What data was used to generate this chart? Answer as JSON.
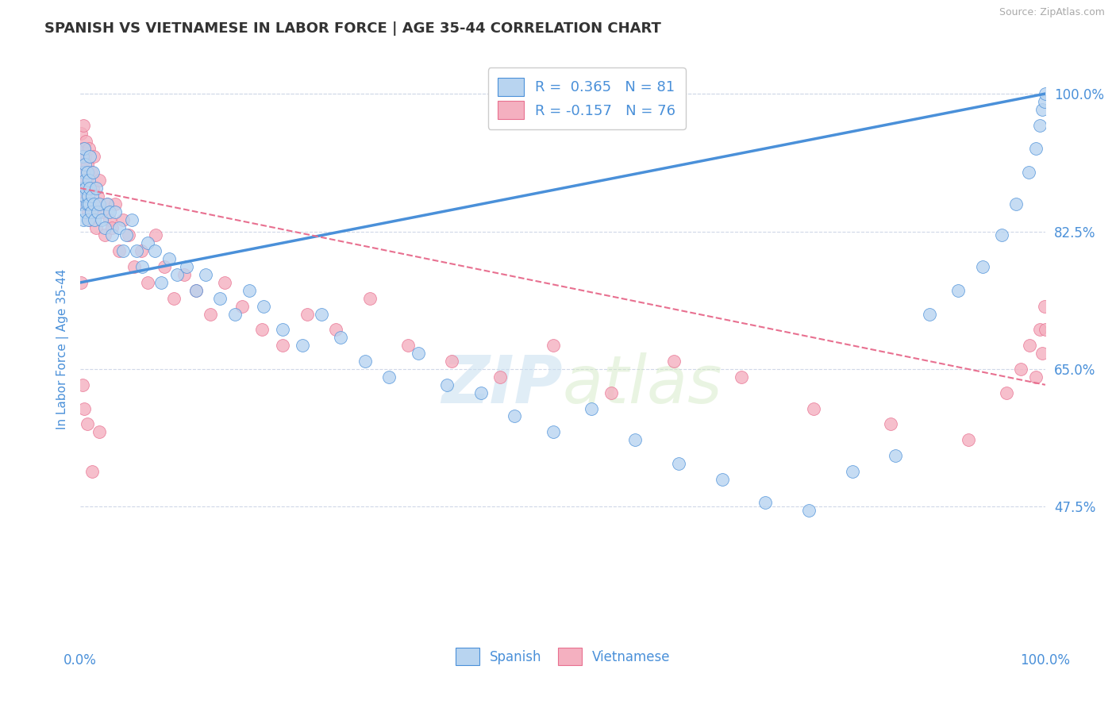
{
  "title": "SPANISH VS VIETNAMESE IN LABOR FORCE | AGE 35-44 CORRELATION CHART",
  "source": "Source: ZipAtlas.com",
  "ylabel": "In Labor Force | Age 35-44",
  "xlim": [
    0.0,
    1.0
  ],
  "ylim": [
    0.3,
    1.05
  ],
  "yticks": [
    0.475,
    0.65,
    0.825,
    1.0
  ],
  "ytick_labels": [
    "47.5%",
    "65.0%",
    "82.5%",
    "100.0%"
  ],
  "legend_entries": [
    {
      "label": "R =  0.365   N = 81",
      "color": "#a8c8e8"
    },
    {
      "label": "R = -0.157   N = 76",
      "color": "#f4a0b0"
    }
  ],
  "bottom_legend": [
    "Spanish",
    "Vietnamese"
  ],
  "blue_color": "#4a90d9",
  "pink_color": "#e87090",
  "dot_blue": "#b8d4f0",
  "dot_pink": "#f4b0c0",
  "watermark_zip": "ZIP",
  "watermark_atlas": "atlas",
  "watermark_color": "#c8dff0",
  "title_fontsize": 13,
  "axis_label_color": "#4a90d9",
  "tick_label_color": "#4a90d9",
  "grid_color": "#d0d8e8",
  "blue_trend": [
    0.76,
    1.0
  ],
  "pink_trend": [
    0.88,
    0.63
  ],
  "spanish_x": [
    0.001,
    0.002,
    0.002,
    0.003,
    0.003,
    0.004,
    0.004,
    0.005,
    0.005,
    0.006,
    0.006,
    0.007,
    0.007,
    0.008,
    0.008,
    0.009,
    0.009,
    0.01,
    0.01,
    0.011,
    0.012,
    0.013,
    0.014,
    0.015,
    0.016,
    0.018,
    0.02,
    0.022,
    0.025,
    0.028,
    0.03,
    0.033,
    0.036,
    0.04,
    0.044,
    0.048,
    0.053,
    0.058,
    0.064,
    0.07,
    0.077,
    0.084,
    0.092,
    0.1,
    0.11,
    0.12,
    0.13,
    0.145,
    0.16,
    0.175,
    0.19,
    0.21,
    0.23,
    0.25,
    0.27,
    0.295,
    0.32,
    0.35,
    0.38,
    0.415,
    0.45,
    0.49,
    0.53,
    0.575,
    0.62,
    0.665,
    0.71,
    0.755,
    0.8,
    0.845,
    0.88,
    0.91,
    0.935,
    0.955,
    0.97,
    0.983,
    0.99,
    0.994,
    0.997,
    0.999,
    1.0
  ],
  "spanish_y": [
    0.86,
    0.92,
    0.88,
    0.9,
    0.84,
    0.93,
    0.87,
    0.89,
    0.91,
    0.85,
    0.88,
    0.86,
    0.9,
    0.87,
    0.84,
    0.89,
    0.86,
    0.88,
    0.92,
    0.85,
    0.87,
    0.9,
    0.86,
    0.84,
    0.88,
    0.85,
    0.86,
    0.84,
    0.83,
    0.86,
    0.85,
    0.82,
    0.85,
    0.83,
    0.8,
    0.82,
    0.84,
    0.8,
    0.78,
    0.81,
    0.8,
    0.76,
    0.79,
    0.77,
    0.78,
    0.75,
    0.77,
    0.74,
    0.72,
    0.75,
    0.73,
    0.7,
    0.68,
    0.72,
    0.69,
    0.66,
    0.64,
    0.67,
    0.63,
    0.62,
    0.59,
    0.57,
    0.6,
    0.56,
    0.53,
    0.51,
    0.48,
    0.47,
    0.52,
    0.54,
    0.72,
    0.75,
    0.78,
    0.82,
    0.86,
    0.9,
    0.93,
    0.96,
    0.98,
    0.99,
    1.0
  ],
  "vietnamese_x": [
    0.001,
    0.001,
    0.002,
    0.002,
    0.003,
    0.003,
    0.004,
    0.004,
    0.005,
    0.005,
    0.006,
    0.006,
    0.007,
    0.007,
    0.008,
    0.008,
    0.009,
    0.01,
    0.01,
    0.011,
    0.012,
    0.013,
    0.014,
    0.015,
    0.016,
    0.018,
    0.02,
    0.022,
    0.025,
    0.028,
    0.03,
    0.033,
    0.036,
    0.04,
    0.044,
    0.05,
    0.056,
    0.063,
    0.07,
    0.078,
    0.087,
    0.097,
    0.108,
    0.12,
    0.135,
    0.15,
    0.168,
    0.188,
    0.21,
    0.235,
    0.265,
    0.3,
    0.34,
    0.385,
    0.435,
    0.49,
    0.55,
    0.615,
    0.685,
    0.76,
    0.84,
    0.92,
    0.96,
    0.975,
    0.984,
    0.99,
    0.994,
    0.997,
    0.999,
    1.0,
    0.001,
    0.002,
    0.004,
    0.007,
    0.012,
    0.02
  ],
  "vietnamese_y": [
    0.95,
    0.9,
    0.93,
    0.87,
    0.91,
    0.96,
    0.88,
    0.93,
    0.92,
    0.86,
    0.89,
    0.94,
    0.87,
    0.91,
    0.9,
    0.85,
    0.93,
    0.88,
    0.84,
    0.9,
    0.86,
    0.88,
    0.92,
    0.85,
    0.83,
    0.87,
    0.89,
    0.85,
    0.82,
    0.86,
    0.84,
    0.83,
    0.86,
    0.8,
    0.84,
    0.82,
    0.78,
    0.8,
    0.76,
    0.82,
    0.78,
    0.74,
    0.77,
    0.75,
    0.72,
    0.76,
    0.73,
    0.7,
    0.68,
    0.72,
    0.7,
    0.74,
    0.68,
    0.66,
    0.64,
    0.68,
    0.62,
    0.66,
    0.64,
    0.6,
    0.58,
    0.56,
    0.62,
    0.65,
    0.68,
    0.64,
    0.7,
    0.67,
    0.73,
    0.7,
    0.76,
    0.63,
    0.6,
    0.58,
    0.52,
    0.57
  ]
}
